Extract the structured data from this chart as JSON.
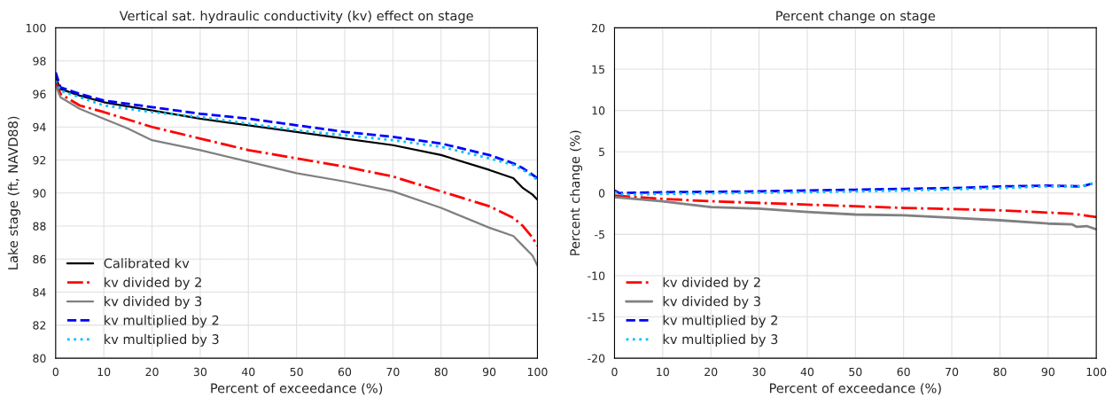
{
  "chart_data": [
    {
      "type": "line",
      "title": "Vertical sat. hydraulic conductivity (kv) effect on stage",
      "xlabel": "Percent of exceedance (%)",
      "ylabel": "Lake stage (ft, NAVD88)",
      "xlim": [
        0,
        100
      ],
      "xticks": [
        0,
        10,
        20,
        30,
        40,
        50,
        60,
        70,
        80,
        90,
        100
      ],
      "ylim": [
        80,
        100
      ],
      "yticks": [
        80,
        82,
        84,
        86,
        88,
        90,
        92,
        94,
        96,
        98,
        100
      ],
      "grid": true,
      "legend": "bottom left",
      "series": [
        {
          "name": "Calibrated kv",
          "color": "#000000",
          "line_style": "solid",
          "x": [
            0,
            1,
            5,
            10,
            20,
            30,
            40,
            50,
            60,
            70,
            80,
            90,
            95,
            97,
            99,
            100
          ],
          "values": [
            97.0,
            96.3,
            95.9,
            95.5,
            95.0,
            94.5,
            94.1,
            93.7,
            93.3,
            92.9,
            92.3,
            91.4,
            90.9,
            90.3,
            89.9,
            89.6
          ]
        },
        {
          "name": "kv divided by 2",
          "color": "#ff0000",
          "line_style": "dashdot",
          "x": [
            0,
            1,
            5,
            10,
            20,
            30,
            40,
            50,
            60,
            70,
            80,
            90,
            95,
            97,
            99,
            100
          ],
          "values": [
            96.8,
            96.0,
            95.3,
            94.9,
            94.0,
            93.3,
            92.6,
            92.1,
            91.6,
            91.0,
            90.1,
            89.2,
            88.5,
            88.0,
            87.3,
            86.8
          ]
        },
        {
          "name": "kv divided by 3",
          "color": "#808080",
          "line_style": "solid",
          "x": [
            0,
            1,
            5,
            10,
            15,
            20,
            30,
            40,
            50,
            60,
            70,
            80,
            90,
            95,
            97,
            99,
            100
          ],
          "values": [
            96.5,
            95.8,
            95.1,
            94.5,
            93.9,
            93.2,
            92.6,
            91.9,
            91.2,
            90.7,
            90.1,
            89.1,
            87.9,
            87.4,
            86.8,
            86.2,
            85.6
          ]
        },
        {
          "name": "kv multiplied by 2",
          "color": "#0000ff",
          "line_style": "dashed",
          "x": [
            0,
            1,
            5,
            10,
            20,
            30,
            40,
            50,
            60,
            70,
            80,
            90,
            95,
            97,
            99,
            100
          ],
          "values": [
            97.3,
            96.4,
            96.0,
            95.6,
            95.2,
            94.8,
            94.5,
            94.1,
            93.7,
            93.4,
            93.0,
            92.3,
            91.8,
            91.5,
            91.1,
            90.9
          ]
        },
        {
          "name": "kv multiplied by 3",
          "color": "#00bfff",
          "line_style": "dotted",
          "x": [
            0,
            1,
            5,
            10,
            20,
            30,
            40,
            50,
            60,
            70,
            80,
            90,
            95,
            97,
            99,
            100
          ],
          "values": [
            96.8,
            96.2,
            95.8,
            95.3,
            94.9,
            94.6,
            94.2,
            93.8,
            93.5,
            93.2,
            92.8,
            92.1,
            91.7,
            91.4,
            91.0,
            90.8
          ]
        }
      ]
    },
    {
      "type": "line",
      "title": "Percent change on stage",
      "xlabel": "Percent of exceedance (%)",
      "ylabel": "Percent change (%)",
      "xlim": [
        0,
        100
      ],
      "xticks": [
        0,
        10,
        20,
        30,
        40,
        50,
        60,
        70,
        80,
        90,
        100
      ],
      "ylim": [
        -20,
        20
      ],
      "yticks": [
        -20,
        -15,
        -10,
        -5,
        0,
        5,
        10,
        15,
        20
      ],
      "grid": true,
      "legend": "bottom left",
      "series": [
        {
          "name": "kv divided by 2",
          "color": "#ff0000",
          "line_style": "dashdot",
          "x": [
            0,
            10,
            20,
            40,
            60,
            80,
            95,
            100
          ],
          "values": [
            -0.3,
            -0.7,
            -1.0,
            -1.4,
            -1.8,
            -2.1,
            -2.5,
            -2.9
          ]
        },
        {
          "name": "kv divided by 3",
          "color": "#808080",
          "line_style": "solid",
          "x": [
            0,
            10,
            20,
            30,
            40,
            50,
            60,
            70,
            80,
            90,
            95,
            96,
            98,
            100
          ],
          "values": [
            -0.5,
            -1.0,
            -1.7,
            -1.9,
            -2.3,
            -2.6,
            -2.7,
            -3.0,
            -3.3,
            -3.7,
            -3.8,
            -4.1,
            -4.0,
            -4.4
          ]
        },
        {
          "name": "kv multiplied by 2",
          "color": "#0000ff",
          "line_style": "dashed",
          "x": [
            0,
            1,
            10,
            30,
            50,
            60,
            70,
            80,
            90,
            97,
            100
          ],
          "values": [
            0.3,
            0.0,
            0.1,
            0.2,
            0.4,
            0.5,
            0.6,
            0.8,
            0.9,
            0.8,
            1.3
          ]
        },
        {
          "name": "kv multiplied by 3",
          "color": "#00bfff",
          "line_style": "dotted",
          "x": [
            0,
            2,
            10,
            40,
            60,
            80,
            90,
            97,
            100
          ],
          "values": [
            0.1,
            -0.2,
            -0.1,
            0.1,
            0.3,
            0.6,
            0.8,
            0.8,
            1.3
          ]
        }
      ]
    }
  ]
}
